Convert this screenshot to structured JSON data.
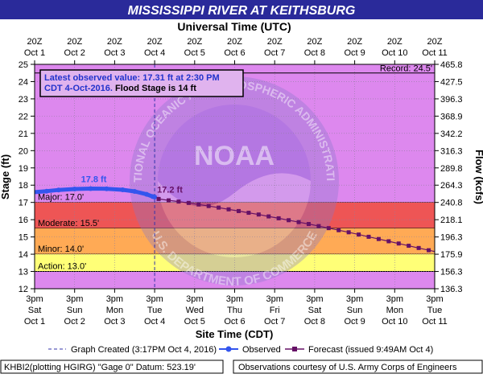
{
  "chart_data": {
    "type": "line",
    "title": "MISSISSIPPI RIVER AT KEITHSBURG",
    "top_axis_title": "Universal Time (UTC)",
    "top_ticks": [
      {
        "hour": "20Z",
        "day": "Oct 1"
      },
      {
        "hour": "20Z",
        "day": "Oct 2"
      },
      {
        "hour": "20Z",
        "day": "Oct 3"
      },
      {
        "hour": "20Z",
        "day": "Oct 4"
      },
      {
        "hour": "20Z",
        "day": "Oct 5"
      },
      {
        "hour": "20Z",
        "day": "Oct 6"
      },
      {
        "hour": "20Z",
        "day": "Oct 7"
      },
      {
        "hour": "20Z",
        "day": "Oct 8"
      },
      {
        "hour": "20Z",
        "day": "Oct 9"
      },
      {
        "hour": "20Z",
        "day": "Oct 10"
      },
      {
        "hour": "20Z",
        "day": "Oct 11"
      }
    ],
    "bottom_axis_title": "Site Time (CDT)",
    "bottom_ticks": [
      {
        "time": "3pm",
        "dow": "Sat",
        "day": "Oct 1"
      },
      {
        "time": "3pm",
        "dow": "Sun",
        "day": "Oct 2"
      },
      {
        "time": "3pm",
        "dow": "Mon",
        "day": "Oct 3"
      },
      {
        "time": "3pm",
        "dow": "Tue",
        "day": "Oct 4"
      },
      {
        "time": "3pm",
        "dow": "Wed",
        "day": "Oct 5"
      },
      {
        "time": "3pm",
        "dow": "Thu",
        "day": "Oct 6"
      },
      {
        "time": "3pm",
        "dow": "Fri",
        "day": "Oct 7"
      },
      {
        "time": "3pm",
        "dow": "Sat",
        "day": "Oct 8"
      },
      {
        "time": "3pm",
        "dow": "Sun",
        "day": "Oct 9"
      },
      {
        "time": "3pm",
        "dow": "Mon",
        "day": "Oct 10"
      },
      {
        "time": "3pm",
        "dow": "Tue",
        "day": "Oct 11"
      }
    ],
    "ylabel": "Stage (ft)",
    "ylim": [
      12,
      25
    ],
    "yticks": [
      "12",
      "13",
      "14",
      "15",
      "16",
      "17",
      "18",
      "19",
      "20",
      "21",
      "22",
      "23",
      "24",
      "25"
    ],
    "y2label": "Flow (kcfs)",
    "y2ticks": [
      "136.3",
      "156.3",
      "175.9",
      "196.3",
      "218.1",
      "240.8",
      "264.3",
      "289.8",
      "316.3",
      "342.2",
      "368.9",
      "396.3",
      "427.5",
      "465.8"
    ],
    "xlim_days": [
      0,
      10
    ],
    "flood_categories": [
      {
        "label": "Major: 17.0'",
        "from": 17.0,
        "to": 25,
        "color": "#dd88ee"
      },
      {
        "label": "Moderate: 15.5'",
        "from": 15.5,
        "to": 17.0,
        "color": "#ee5555"
      },
      {
        "label": "Minor: 14.0'",
        "from": 14.0,
        "to": 15.5,
        "color": "#ffaa55"
      },
      {
        "label": "Action: 13.0'",
        "from": 13.0,
        "to": 14.0,
        "color": "#ffff77"
      }
    ],
    "record": {
      "label": "Record: 24.5'",
      "value": 24.5
    },
    "info_box": {
      "line1": "Latest observed value: 17.31 ft at 2:30 PM",
      "line2a": "CDT 4-Oct-2016.",
      "line2b": " Flood Stage is 14 ft"
    },
    "graph_created_day": 3.0,
    "observed": {
      "name": "Observed",
      "color": "#3355ee",
      "peak_label": "17.8 ft",
      "points": [
        [
          -0.1,
          17.58
        ],
        [
          0.3,
          17.65
        ],
        [
          0.6,
          17.72
        ],
        [
          1.0,
          17.78
        ],
        [
          1.4,
          17.8
        ],
        [
          1.8,
          17.79
        ],
        [
          2.2,
          17.73
        ],
        [
          2.5,
          17.64
        ],
        [
          2.8,
          17.47
        ],
        [
          2.95,
          17.34
        ],
        [
          3.0,
          17.31
        ]
      ]
    },
    "forecast": {
      "name": "Forecast",
      "color": "#661166",
      "start_label": "17.2 ft",
      "points": [
        [
          3.1,
          17.2
        ],
        [
          3.35,
          17.12
        ],
        [
          3.6,
          17.05
        ],
        [
          3.85,
          16.97
        ],
        [
          4.1,
          16.88
        ],
        [
          4.35,
          16.79
        ],
        [
          4.6,
          16.7
        ],
        [
          4.85,
          16.6
        ],
        [
          5.1,
          16.5
        ],
        [
          5.35,
          16.4
        ],
        [
          5.6,
          16.3
        ],
        [
          5.85,
          16.19
        ],
        [
          6.1,
          16.08
        ],
        [
          6.35,
          15.97
        ],
        [
          6.6,
          15.86
        ],
        [
          6.85,
          15.75
        ],
        [
          7.1,
          15.63
        ],
        [
          7.35,
          15.51
        ],
        [
          7.6,
          15.39
        ],
        [
          7.85,
          15.27
        ],
        [
          8.1,
          15.14
        ],
        [
          8.35,
          15.01
        ],
        [
          8.6,
          14.88
        ],
        [
          8.85,
          14.75
        ],
        [
          9.1,
          14.62
        ],
        [
          9.35,
          14.49
        ],
        [
          9.6,
          14.36
        ],
        [
          9.85,
          14.23
        ],
        [
          10.1,
          14.1
        ],
        [
          10.35,
          13.97
        ],
        [
          10.6,
          13.84
        ],
        [
          10.85,
          13.71
        ]
      ]
    },
    "legend": {
      "created": "Graph Created (3:17PM Oct 4, 2016)",
      "observed": "Observed",
      "forecast": "Forecast (issued 9:49AM Oct 4)"
    },
    "footer_left": "KHBI2(plotting HGIRG) \"Gage 0\" Datum:  523.19'",
    "footer_right": "Observations courtesy of U.S. Army Corps of Engineers",
    "watermark_top": "NATIONAL OCEANIC AND ATMOSPHERIC ADMINISTRATION",
    "watermark_bottom": "U.S. DEPARTMENT OF COMMERCE",
    "watermark_logo": "NOAA"
  }
}
